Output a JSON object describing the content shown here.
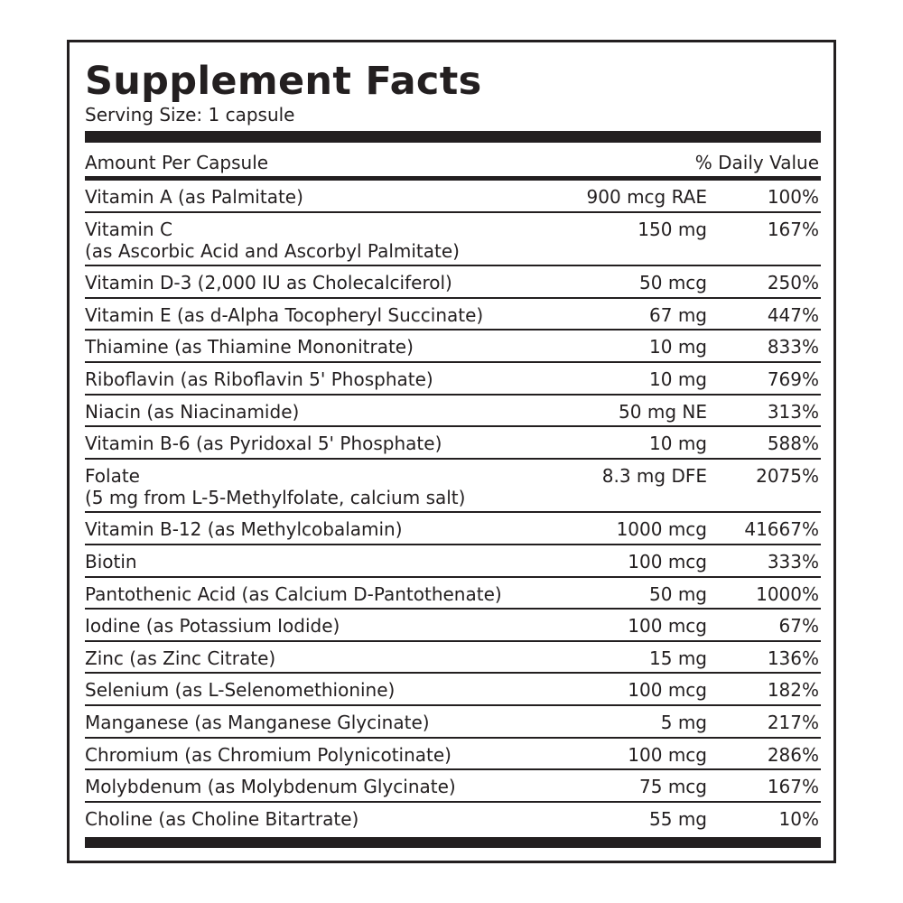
{
  "title": "Supplement Facts",
  "serving_size": "Serving Size: 1 capsule",
  "header": {
    "amount": "Amount Per Capsule",
    "dv": "% Daily Value"
  },
  "rows": [
    {
      "name": "Vitamin A (as Palmitate)",
      "amount": "900 mcg RAE",
      "dv": "100%"
    },
    {
      "name": "Vitamin C",
      "sub": "(as Ascorbic Acid and Ascorbyl Palmitate)",
      "amount": "150 mg",
      "dv": "167%"
    },
    {
      "name": "Vitamin D-3 (2,000 IU as Cholecalciferol)",
      "amount": "50 mcg",
      "dv": "250%"
    },
    {
      "name": "Vitamin E (as d-Alpha Tocopheryl Succinate)",
      "amount": "67 mg",
      "dv": "447%"
    },
    {
      "name": "Thiamine (as Thiamine Mononitrate)",
      "amount": "10 mg",
      "dv": "833%"
    },
    {
      "name": "Riboflavin (as Riboflavin 5' Phosphate)",
      "amount": "10 mg",
      "dv": "769%"
    },
    {
      "name": "Niacin (as Niacinamide)",
      "amount": "50 mg NE",
      "dv": "313%"
    },
    {
      "name": "Vitamin B-6 (as Pyridoxal 5' Phosphate)",
      "amount": "10 mg",
      "dv": "588%"
    },
    {
      "name": "Folate",
      "sub": "(5 mg from L-5-Methylfolate, calcium salt)",
      "amount": "8.3 mg DFE",
      "dv": "2075%"
    },
    {
      "name": "Vitamin B-12 (as Methylcobalamin)",
      "amount": "1000 mcg",
      "dv": "41667%"
    },
    {
      "name": "Biotin",
      "amount": "100 mcg",
      "dv": "333%"
    },
    {
      "name": "Pantothenic Acid (as Calcium D-Pantothenate)",
      "amount": "50 mg",
      "dv": "1000%"
    },
    {
      "name": "Iodine (as Potassium Iodide)",
      "amount": "100 mcg",
      "dv": "67%"
    },
    {
      "name": "Zinc (as Zinc Citrate)",
      "amount": "15 mg",
      "dv": "136%"
    },
    {
      "name": "Selenium (as L-Selenomethionine)",
      "amount": "100 mcg",
      "dv": "182%"
    },
    {
      "name": "Manganese (as Manganese Glycinate)",
      "amount": "5 mg",
      "dv": "217%"
    },
    {
      "name": "Chromium (as Chromium Polynicotinate)",
      "amount": "100 mcg",
      "dv": "286%"
    },
    {
      "name": "Molybdenum (as Molybdenum Glycinate)",
      "amount": "75 mcg",
      "dv": "167%"
    },
    {
      "name": "Choline (as Choline Bitartrate)",
      "amount": "55 mg",
      "dv": "10%"
    }
  ]
}
